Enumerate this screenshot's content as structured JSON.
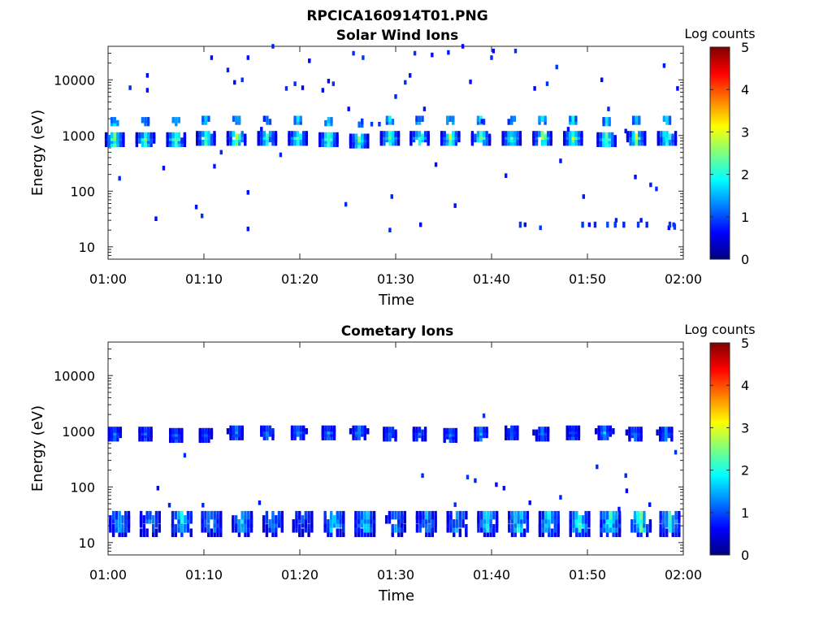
{
  "figure": {
    "title": "RPCICA160914T01.PNG"
  },
  "colormap": {
    "stops": [
      "#00007f",
      "#0000ff",
      "#007fff",
      "#00ffff",
      "#7fff7f",
      "#ffff00",
      "#ff7f00",
      "#ff0000",
      "#7f0000"
    ]
  },
  "chart_data": [
    {
      "type": "heatmap",
      "title": "Solar Wind Ions",
      "xlabel": "Time",
      "ylabel": "Energy (eV)",
      "x_ticks": [
        "01:00",
        "01:10",
        "01:20",
        "01:30",
        "01:40",
        "01:50",
        "02:00"
      ],
      "x_range_min": [
        0,
        60
      ],
      "y_scale": "log",
      "y_ticks": [
        10,
        100,
        1000,
        10000
      ],
      "y_tick_labels": [
        "10",
        "100",
        "1000",
        "10000"
      ],
      "ylim": [
        6,
        40000
      ],
      "colorbar": {
        "label": "Log counts",
        "ticks": [
          "0",
          "1",
          "2",
          "3",
          "4",
          "5"
        ],
        "range": [
          0,
          5
        ]
      },
      "bursts": [
        {
          "t": 0.7,
          "e_center": 900,
          "peak": 2.8
        },
        {
          "t": 3.9,
          "e_center": 900,
          "peak": 2.6
        },
        {
          "t": 7.1,
          "e_center": 900,
          "peak": 2.8
        },
        {
          "t": 10.2,
          "e_center": 950,
          "peak": 2.6
        },
        {
          "t": 13.4,
          "e_center": 950,
          "peak": 2.8
        },
        {
          "t": 16.6,
          "e_center": 950,
          "peak": 2.4
        },
        {
          "t": 19.8,
          "e_center": 950,
          "peak": 2.6
        },
        {
          "t": 23.0,
          "e_center": 900,
          "peak": 2.7
        },
        {
          "t": 26.2,
          "e_center": 850,
          "peak": 2.5
        },
        {
          "t": 29.4,
          "e_center": 950,
          "peak": 2.7
        },
        {
          "t": 32.5,
          "e_center": 950,
          "peak": 2.6
        },
        {
          "t": 35.7,
          "e_center": 950,
          "peak": 2.8
        },
        {
          "t": 38.9,
          "e_center": 950,
          "peak": 2.8
        },
        {
          "t": 42.1,
          "e_center": 950,
          "peak": 2.6
        },
        {
          "t": 45.3,
          "e_center": 950,
          "peak": 2.8
        },
        {
          "t": 48.5,
          "e_center": 950,
          "peak": 2.9
        },
        {
          "t": 52.0,
          "e_center": 900,
          "peak": 2.8
        },
        {
          "t": 55.1,
          "e_center": 950,
          "peak": 2.8
        },
        {
          "t": 58.3,
          "e_center": 950,
          "peak": 2.7
        }
      ],
      "scatter": [
        {
          "t": 1.2,
          "e": 170
        },
        {
          "t": 2.3,
          "e": 7200
        },
        {
          "t": 4.1,
          "e": 12000
        },
        {
          "t": 4.1,
          "e": 6500
        },
        {
          "t": 5.0,
          "e": 32
        },
        {
          "t": 5.8,
          "e": 260
        },
        {
          "t": 9.2,
          "e": 52
        },
        {
          "t": 9.8,
          "e": 36
        },
        {
          "t": 10.8,
          "e": 25000
        },
        {
          "t": 11.1,
          "e": 280
        },
        {
          "t": 11.8,
          "e": 500
        },
        {
          "t": 12.5,
          "e": 15000
        },
        {
          "t": 13.2,
          "e": 9000
        },
        {
          "t": 14.0,
          "e": 10000
        },
        {
          "t": 14.6,
          "e": 25000
        },
        {
          "t": 14.6,
          "e": 95
        },
        {
          "t": 14.6,
          "e": 21
        },
        {
          "t": 16.0,
          "e": 1300
        },
        {
          "t": 17.2,
          "e": 40000
        },
        {
          "t": 18.0,
          "e": 450
        },
        {
          "t": 18.6,
          "e": 7000
        },
        {
          "t": 19.5,
          "e": 8500
        },
        {
          "t": 20.3,
          "e": 7200
        },
        {
          "t": 21.0,
          "e": 22000
        },
        {
          "t": 22.4,
          "e": 6500
        },
        {
          "t": 23.0,
          "e": 9500
        },
        {
          "t": 23.5,
          "e": 8500
        },
        {
          "t": 24.8,
          "e": 58
        },
        {
          "t": 25.1,
          "e": 3000
        },
        {
          "t": 25.6,
          "e": 30000
        },
        {
          "t": 26.6,
          "e": 25000
        },
        {
          "t": 27.5,
          "e": 1600
        },
        {
          "t": 28.3,
          "e": 1600
        },
        {
          "t": 29.4,
          "e": 20
        },
        {
          "t": 29.6,
          "e": 80
        },
        {
          "t": 30.0,
          "e": 5000
        },
        {
          "t": 31.0,
          "e": 9000
        },
        {
          "t": 31.5,
          "e": 12000
        },
        {
          "t": 32.0,
          "e": 30000
        },
        {
          "t": 32.6,
          "e": 25
        },
        {
          "t": 33.0,
          "e": 3000
        },
        {
          "t": 33.8,
          "e": 28000
        },
        {
          "t": 34.2,
          "e": 300
        },
        {
          "t": 35.5,
          "e": 31000
        },
        {
          "t": 36.2,
          "e": 55
        },
        {
          "t": 37.0,
          "e": 40000
        },
        {
          "t": 37.8,
          "e": 9200
        },
        {
          "t": 39.0,
          "e": 1800
        },
        {
          "t": 40.0,
          "e": 25000
        },
        {
          "t": 40.2,
          "e": 33000
        },
        {
          "t": 41.5,
          "e": 190
        },
        {
          "t": 42.5,
          "e": 33000
        },
        {
          "t": 43.5,
          "e": 25
        },
        {
          "t": 44.5,
          "e": 7000
        },
        {
          "t": 45.1,
          "e": 22
        },
        {
          "t": 45.8,
          "e": 8500
        },
        {
          "t": 46.8,
          "e": 17000
        },
        {
          "t": 47.2,
          "e": 350
        },
        {
          "t": 48.0,
          "e": 1300
        },
        {
          "t": 49.6,
          "e": 80
        },
        {
          "t": 50.2,
          "e": 25
        },
        {
          "t": 51.5,
          "e": 10000
        },
        {
          "t": 52.2,
          "e": 3000
        },
        {
          "t": 53.0,
          "e": 30
        },
        {
          "t": 54.0,
          "e": 1200
        },
        {
          "t": 55.0,
          "e": 180
        },
        {
          "t": 55.6,
          "e": 30
        },
        {
          "t": 56.6,
          "e": 130
        },
        {
          "t": 57.2,
          "e": 110
        },
        {
          "t": 58.0,
          "e": 18000
        },
        {
          "t": 58.5,
          "e": 22
        },
        {
          "t": 59.0,
          "e": 25
        },
        {
          "t": 59.4,
          "e": 7000
        }
      ],
      "low_energy_blips": [
        {
          "t": 43.0,
          "e": 25,
          "v": 0.9
        },
        {
          "t": 49.5,
          "e": 25,
          "v": 0.9
        },
        {
          "t": 50.8,
          "e": 25,
          "v": 0.8
        },
        {
          "t": 52.1,
          "e": 25,
          "v": 1.0
        },
        {
          "t": 52.9,
          "e": 25,
          "v": 0.9
        },
        {
          "t": 53.8,
          "e": 25,
          "v": 0.8
        },
        {
          "t": 55.3,
          "e": 25,
          "v": 0.9
        },
        {
          "t": 56.2,
          "e": 25,
          "v": 0.8
        },
        {
          "t": 58.6,
          "e": 25,
          "v": 0.9
        },
        {
          "t": 59.1,
          "e": 23,
          "v": 0.9
        }
      ]
    },
    {
      "type": "heatmap",
      "title": "Cometary Ions",
      "xlabel": "Time",
      "ylabel": "Energy (eV)",
      "x_ticks": [
        "01:00",
        "01:10",
        "01:20",
        "01:30",
        "01:40",
        "01:50",
        "02:00"
      ],
      "x_range_min": [
        0,
        60
      ],
      "y_scale": "log",
      "y_ticks": [
        10,
        100,
        1000,
        10000
      ],
      "y_tick_labels": [
        "10",
        "100",
        "1000",
        "10000"
      ],
      "ylim": [
        6,
        40000
      ],
      "colorbar": {
        "label": "Log counts",
        "ticks": [
          "0",
          "1",
          "2",
          "3",
          "4",
          "5"
        ],
        "range": [
          0,
          5
        ]
      },
      "bursts": [
        {
          "t": 0.7,
          "e_center": 950,
          "peak": 1.3
        },
        {
          "t": 3.9,
          "e_center": 950,
          "peak": 1.2
        },
        {
          "t": 7.1,
          "e_center": 900,
          "peak": 1.3
        },
        {
          "t": 10.2,
          "e_center": 900,
          "peak": 1.2
        },
        {
          "t": 13.4,
          "e_center": 1000,
          "peak": 1.4
        },
        {
          "t": 16.6,
          "e_center": 1000,
          "peak": 1.5
        },
        {
          "t": 19.8,
          "e_center": 1000,
          "peak": 1.5
        },
        {
          "t": 23.0,
          "e_center": 1000,
          "peak": 1.4
        },
        {
          "t": 26.2,
          "e_center": 1000,
          "peak": 1.6
        },
        {
          "t": 29.4,
          "e_center": 950,
          "peak": 1.4
        },
        {
          "t": 32.5,
          "e_center": 950,
          "peak": 1.3
        },
        {
          "t": 35.7,
          "e_center": 900,
          "peak": 1.3
        },
        {
          "t": 38.9,
          "e_center": 950,
          "peak": 1.5
        },
        {
          "t": 42.1,
          "e_center": 1000,
          "peak": 1.3
        },
        {
          "t": 45.3,
          "e_center": 950,
          "peak": 1.4
        },
        {
          "t": 48.5,
          "e_center": 1000,
          "peak": 1.3
        },
        {
          "t": 51.8,
          "e_center": 1000,
          "peak": 1.6
        },
        {
          "t": 55.0,
          "e_center": 950,
          "peak": 1.4
        },
        {
          "t": 58.2,
          "e_center": 950,
          "peak": 1.5
        }
      ],
      "low_bursts": [
        {
          "t": 1.2,
          "peak": 1.6
        },
        {
          "t": 4.4,
          "peak": 1.5
        },
        {
          "t": 7.7,
          "peak": 1.9
        },
        {
          "t": 10.8,
          "peak": 1.8
        },
        {
          "t": 14.0,
          "peak": 1.7
        },
        {
          "t": 17.2,
          "peak": 1.5
        },
        {
          "t": 20.3,
          "peak": 1.2
        },
        {
          "t": 23.6,
          "peak": 2.0
        },
        {
          "t": 26.8,
          "peak": 1.9
        },
        {
          "t": 30.0,
          "peak": 1.4
        },
        {
          "t": 33.2,
          "peak": 1.6
        },
        {
          "t": 36.4,
          "peak": 1.7
        },
        {
          "t": 39.6,
          "peak": 1.9
        },
        {
          "t": 42.8,
          "peak": 2.0
        },
        {
          "t": 46.0,
          "peak": 1.9
        },
        {
          "t": 49.2,
          "peak": 2.1
        },
        {
          "t": 52.4,
          "peak": 2.2
        },
        {
          "t": 55.6,
          "peak": 2.3
        },
        {
          "t": 58.6,
          "peak": 2.1
        }
      ],
      "scatter": [
        {
          "t": 5.2,
          "e": 95
        },
        {
          "t": 6.4,
          "e": 47
        },
        {
          "t": 8.0,
          "e": 370
        },
        {
          "t": 9.9,
          "e": 47
        },
        {
          "t": 15.8,
          "e": 52
        },
        {
          "t": 32.8,
          "e": 160
        },
        {
          "t": 36.2,
          "e": 48
        },
        {
          "t": 37.5,
          "e": 150
        },
        {
          "t": 38.3,
          "e": 130
        },
        {
          "t": 39.2,
          "e": 1900
        },
        {
          "t": 40.5,
          "e": 110
        },
        {
          "t": 41.3,
          "e": 95
        },
        {
          "t": 44.0,
          "e": 52
        },
        {
          "t": 47.2,
          "e": 65
        },
        {
          "t": 51.0,
          "e": 230
        },
        {
          "t": 53.3,
          "e": 40
        },
        {
          "t": 54.0,
          "e": 160
        },
        {
          "t": 54.1,
          "e": 85
        },
        {
          "t": 56.5,
          "e": 48
        },
        {
          "t": 59.2,
          "e": 420
        }
      ]
    }
  ]
}
